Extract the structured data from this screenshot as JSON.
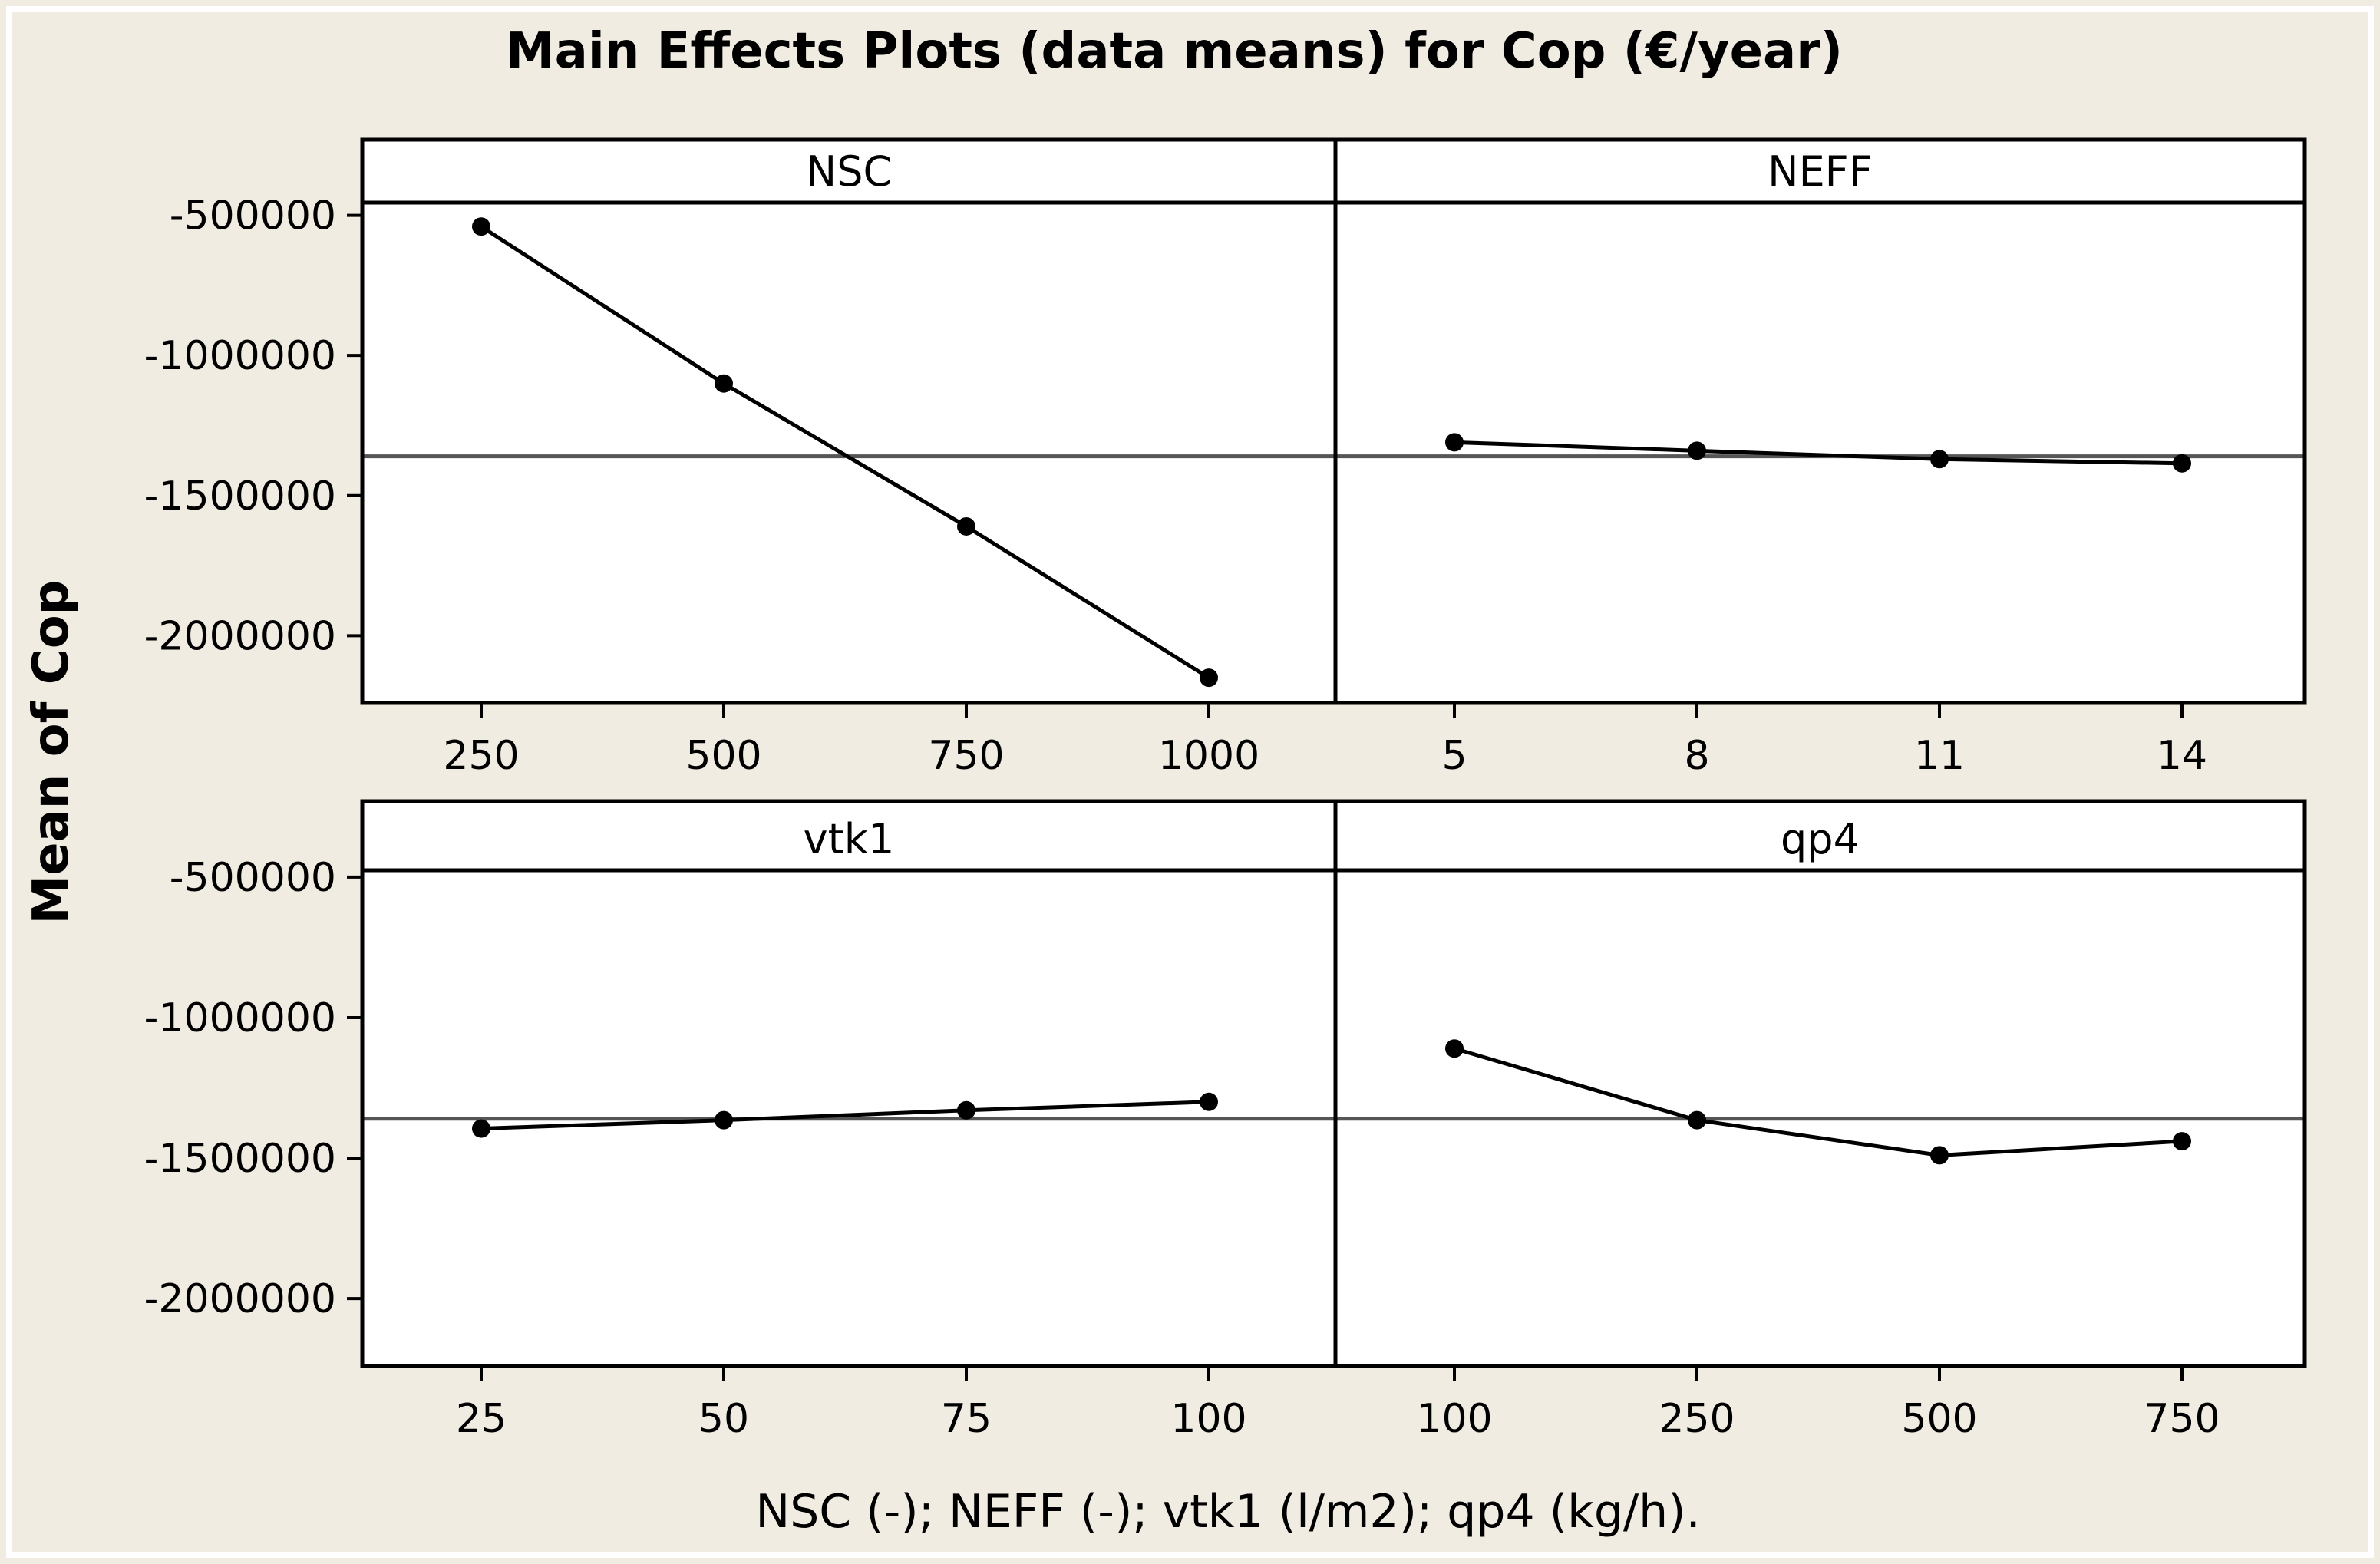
{
  "chart_data": {
    "type": "line",
    "title": "Main Effects Plots (data means) for Cop (€/year)",
    "xlabel": "NSC (-); NEFF (-); vtk1 (l/m2); qp4 (kg/h).",
    "ylabel": "Mean of Cop",
    "ylim": [
      -2240000,
      -230000
    ],
    "yticks": [
      -500000,
      -1000000,
      -1500000,
      -2000000
    ],
    "ytick_labels": [
      "-500000",
      "-1000000",
      "-1500000",
      "-2000000"
    ],
    "overall_mean": -1360000,
    "panels": [
      {
        "name": "NSC",
        "categories": [
          "250",
          "500",
          "750",
          "1000"
        ],
        "values": [
          -540000,
          -1100000,
          -1610000,
          -2150000
        ]
      },
      {
        "name": "NEFF",
        "categories": [
          "5",
          "8",
          "11",
          "14"
        ],
        "values": [
          -1310000,
          -1340000,
          -1370000,
          -1385000
        ]
      },
      {
        "name": "vtk1",
        "categories": [
          "25",
          "50",
          "75",
          "100"
        ],
        "values": [
          -1395000,
          -1365000,
          -1330000,
          -1300000
        ]
      },
      {
        "name": "qp4",
        "categories": [
          "100",
          "250",
          "500",
          "750"
        ],
        "values": [
          -1110000,
          -1365000,
          -1490000,
          -1440000
        ]
      }
    ],
    "grid": false
  }
}
